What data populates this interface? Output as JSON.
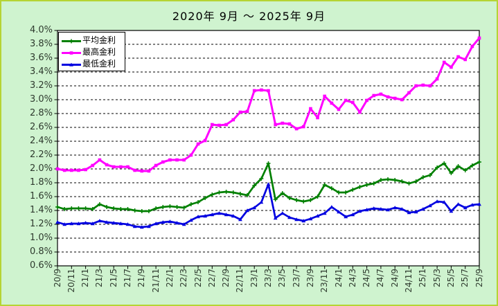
{
  "chart_data": {
    "type": "line",
    "title": "2020年 9月 ～ 2025年 9月",
    "ylim": [
      0.6,
      4.0
    ],
    "ytick_step": 0.2,
    "y_tick_labels": [
      "4.0%",
      "3.8%",
      "3.6%",
      "3.4%",
      "3.2%",
      "3.0%",
      "2.8%",
      "2.6%",
      "2.4%",
      "2.2%",
      "2.0%",
      "1.8%",
      "1.6%",
      "1.4%",
      "1.2%",
      "1.0%",
      "0.8%",
      "0.6%"
    ],
    "x": [
      "20/9",
      "20/10",
      "20/11",
      "20/12",
      "21/1",
      "21/2",
      "21/3",
      "21/4",
      "21/5",
      "21/6",
      "21/7",
      "21/8",
      "21/9",
      "21/10",
      "21/11",
      "21/12",
      "22/1",
      "22/2",
      "22/3",
      "22/4",
      "22/5",
      "22/6",
      "22/7",
      "22/8",
      "22/9",
      "22/10",
      "22/11",
      "22/12",
      "23/1",
      "23/2",
      "23/3",
      "23/4",
      "23/5",
      "23/6",
      "23/7",
      "23/8",
      "23/9",
      "23/10",
      "23/11",
      "23/12",
      "24/1",
      "24/2",
      "24/3",
      "24/4",
      "24/5",
      "24/6",
      "24/7",
      "24/8",
      "24/9",
      "24/10",
      "24/11",
      "24/12",
      "25/1",
      "25/2",
      "25/3",
      "25/4",
      "25/5",
      "25/6",
      "25/7",
      "25/8",
      "25/9"
    ],
    "x_tick_every": 2,
    "grid": "horizontal-dashed",
    "legend_position": "top-left-inside",
    "series": [
      {
        "name": "平均金利",
        "key": "average",
        "color": "#008000",
        "marker": "plus",
        "values": [
          1.45,
          1.42,
          1.43,
          1.43,
          1.43,
          1.42,
          1.49,
          1.45,
          1.43,
          1.42,
          1.42,
          1.4,
          1.39,
          1.39,
          1.43,
          1.45,
          1.46,
          1.45,
          1.44,
          1.49,
          1.52,
          1.58,
          1.63,
          1.66,
          1.67,
          1.66,
          1.64,
          1.62,
          1.76,
          1.86,
          2.08,
          1.56,
          1.65,
          1.58,
          1.55,
          1.53,
          1.55,
          1.6,
          1.77,
          1.72,
          1.66,
          1.66,
          1.7,
          1.74,
          1.77,
          1.79,
          1.84,
          1.85,
          1.84,
          1.82,
          1.79,
          1.82,
          1.88,
          1.91,
          2.02,
          2.08,
          1.94,
          2.04,
          1.98,
          2.05,
          2.1
        ]
      },
      {
        "name": "最高金利",
        "key": "highest",
        "color": "#ff00ff",
        "marker": "square",
        "values": [
          2.0,
          1.98,
          1.98,
          1.98,
          1.99,
          2.05,
          2.13,
          2.06,
          2.03,
          2.03,
          2.03,
          1.98,
          1.97,
          1.97,
          2.05,
          2.1,
          2.13,
          2.13,
          2.13,
          2.2,
          2.36,
          2.41,
          2.64,
          2.63,
          2.64,
          2.71,
          2.82,
          2.83,
          3.13,
          3.14,
          3.13,
          2.64,
          2.66,
          2.65,
          2.58,
          2.61,
          2.87,
          2.74,
          3.05,
          2.95,
          2.86,
          2.99,
          2.96,
          2.82,
          2.99,
          3.06,
          3.08,
          3.04,
          3.02,
          3.0,
          3.1,
          3.2,
          3.21,
          3.2,
          3.3,
          3.54,
          3.47,
          3.62,
          3.58,
          3.77,
          3.89
        ]
      },
      {
        "name": "最低金利",
        "key": "lowest",
        "color": "#0000e0",
        "marker": "triangle",
        "values": [
          1.23,
          1.2,
          1.21,
          1.21,
          1.22,
          1.21,
          1.25,
          1.23,
          1.22,
          1.21,
          1.2,
          1.17,
          1.16,
          1.17,
          1.21,
          1.23,
          1.24,
          1.22,
          1.2,
          1.26,
          1.31,
          1.32,
          1.34,
          1.36,
          1.34,
          1.32,
          1.27,
          1.4,
          1.44,
          1.52,
          1.78,
          1.29,
          1.36,
          1.3,
          1.27,
          1.25,
          1.28,
          1.32,
          1.36,
          1.45,
          1.38,
          1.31,
          1.34,
          1.39,
          1.41,
          1.43,
          1.42,
          1.41,
          1.44,
          1.42,
          1.37,
          1.38,
          1.42,
          1.47,
          1.53,
          1.52,
          1.39,
          1.49,
          1.44,
          1.48,
          1.49
        ]
      }
    ]
  },
  "colors": {
    "background": "#cff3cf",
    "frame_border": "#b5d434",
    "plot_background": "#ffffff",
    "axis": "#000000",
    "tick_text": "#2e3a2e"
  }
}
